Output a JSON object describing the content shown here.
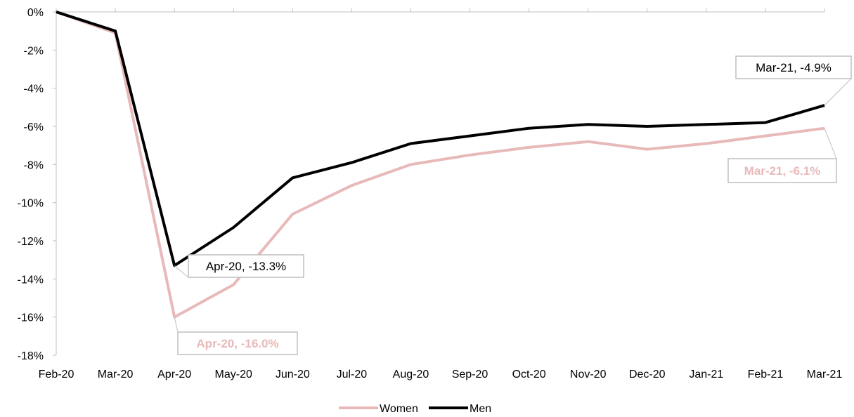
{
  "chart_data": {
    "type": "line",
    "x": [
      "Feb-20",
      "Mar-20",
      "Apr-20",
      "May-20",
      "Jun-20",
      "Jul-20",
      "Aug-20",
      "Sep-20",
      "Oct-20",
      "Nov-20",
      "Dec-20",
      "Jan-21",
      "Feb-21",
      "Mar-21"
    ],
    "ylim": [
      -18,
      0
    ],
    "yticks": [
      0,
      -2,
      -4,
      -6,
      -8,
      -10,
      -12,
      -14,
      -16,
      -18
    ],
    "ytick_labels": [
      "0%",
      "-2%",
      "-4%",
      "-6%",
      "-8%",
      "-10%",
      "-12%",
      "-14%",
      "-16%",
      "-18%"
    ],
    "series": [
      {
        "name": "Women",
        "color": "#e8b9b9",
        "values": [
          0,
          -1.1,
          -16.0,
          -14.3,
          -10.6,
          -9.1,
          -8.0,
          -7.5,
          -7.1,
          -6.8,
          -7.2,
          -6.9,
          -6.5,
          -6.1
        ]
      },
      {
        "name": "Men",
        "color": "#000000",
        "values": [
          0,
          -1.0,
          -13.3,
          -11.3,
          -8.7,
          -7.9,
          -6.9,
          -6.5,
          -6.1,
          -5.9,
          -6.0,
          -5.9,
          -5.8,
          -4.9
        ]
      }
    ],
    "annotations": [
      {
        "text": "Apr-20, -13.3%",
        "series": "Men",
        "index": 2,
        "color": "#000000",
        "bold": false
      },
      {
        "text": "Apr-20, -16.0%",
        "series": "Women",
        "index": 2,
        "color": "#e8b9b9",
        "bold": true
      },
      {
        "text": "Mar-21, -4.9%",
        "series": "Men",
        "index": 13,
        "color": "#000000",
        "bold": false
      },
      {
        "text": "Mar-21, -6.1%",
        "series": "Women",
        "index": 13,
        "color": "#e8b9b9",
        "bold": true
      }
    ],
    "legend": {
      "placement": "bottom-center",
      "items": [
        "Women",
        "Men"
      ]
    },
    "grid": false
  }
}
